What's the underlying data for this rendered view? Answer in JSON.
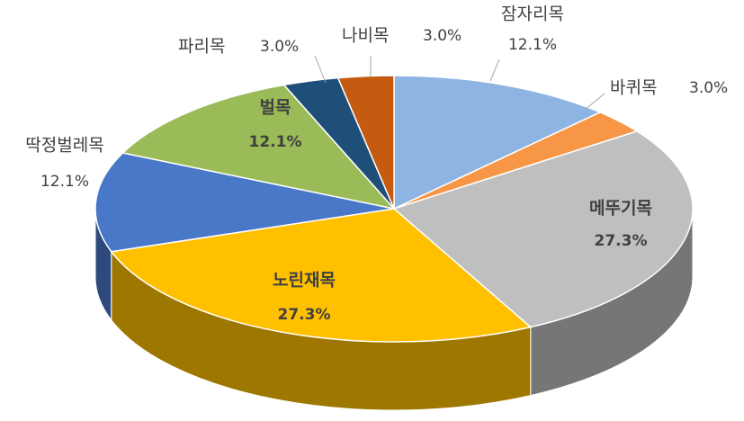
{
  "chart_data": {
    "type": "pie",
    "categories": [
      "잠자리목",
      "바퀴목",
      "메뚜기목",
      "노린재목",
      "딱정벌레목",
      "벌목",
      "파리목",
      "나비목"
    ],
    "values": [
      12.1,
      3.0,
      27.3,
      27.3,
      12.1,
      12.1,
      3.0,
      3.0
    ],
    "value_labels": [
      "12.1%",
      "3.0%",
      "27.3%",
      "27.3%",
      "12.1%",
      "12.1%",
      "3.0%",
      "3.0%"
    ],
    "colors": [
      "#8db4e2",
      "#f79646",
      "#bfbfbf",
      "#ffc000",
      "#4a78c8",
      "#9bbb59",
      "#1f4e79",
      "#c55a11"
    ]
  }
}
